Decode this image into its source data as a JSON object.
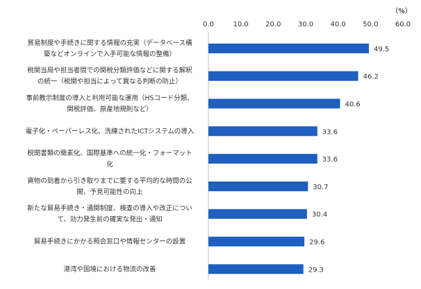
{
  "chart_data": {
    "type": "bar",
    "orientation": "horizontal",
    "unit_label": "（%）",
    "xlim": [
      0,
      60
    ],
    "x_ticks": [
      "0.0",
      "10.0",
      "20.0",
      "30.0",
      "40.0",
      "50.0",
      "60.0"
    ],
    "categories": [
      [
        "貿易制度や手続きに関する情報の充実（データベース構",
        "築などオンラインで入手可能な情報の整備）"
      ],
      [
        "税関当局や担当者間での関税分類評価などに関する解釈",
        "の統一（税関や担当によって異なる判断の防止）"
      ],
      [
        "事前教示制度の導入と利用可能な運用（HSコード分類、",
        "関税評価、原産地規則など）"
      ],
      [
        "電子化・ペーパーレス化、洗練されたICTシステムの導入"
      ],
      [
        "税関書類の簡素化、国際基準への統一化・フォーマット",
        "化"
      ],
      [
        "貨物の到着から引き取りまでに要する平均的な時間の公",
        "開、予見可能性の向上"
      ],
      [
        "新たな貿易手続き・通関制度、検査の導入や改正につい",
        "て、効力発生前の確実な発出・通知"
      ],
      [
        "貿易手続きにかかる照会窓口や情報センターの設置"
      ],
      [
        "港湾や国境における物流の改善"
      ]
    ],
    "values": [
      49.5,
      46.2,
      40.6,
      33.6,
      33.6,
      30.7,
      30.4,
      29.6,
      29.3
    ],
    "value_labels": [
      "49.5",
      "46.2",
      "40.6",
      "33.6",
      "33.6",
      "30.7",
      "30.4",
      "29.6",
      "29.3"
    ],
    "grid": false,
    "colors": {
      "bar": "#1f5fbf",
      "text": "#333333",
      "axis": "#bfbfbf"
    }
  }
}
